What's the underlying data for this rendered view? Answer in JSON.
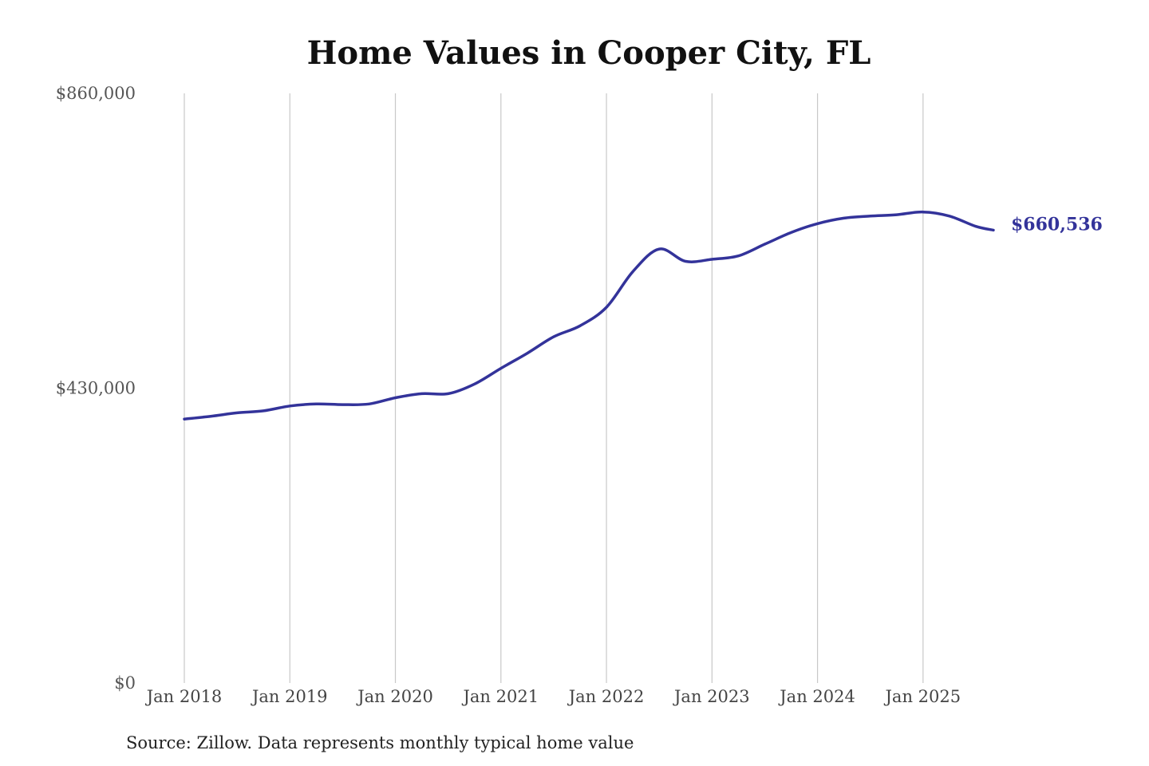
{
  "chart_data": {
    "type": "line",
    "title": "Home Values in Cooper City, FL",
    "source_note": "Source: Zillow. Data represents monthly typical home value",
    "xlabel": "",
    "ylabel": "",
    "ylim": [
      0,
      860000
    ],
    "yticks": [
      {
        "value": 0,
        "label": "$0"
      },
      {
        "value": 430000,
        "label": "$430,000"
      },
      {
        "value": 860000,
        "label": "$860,000"
      }
    ],
    "xlim": [
      "2018-01",
      "2025-09"
    ],
    "xticks": [
      {
        "date": "2018-01",
        "label": "Jan 2018"
      },
      {
        "date": "2019-01",
        "label": "Jan 2019"
      },
      {
        "date": "2020-01",
        "label": "Jan 2020"
      },
      {
        "date": "2021-01",
        "label": "Jan 2021"
      },
      {
        "date": "2022-01",
        "label": "Jan 2022"
      },
      {
        "date": "2023-01",
        "label": "Jan 2023"
      },
      {
        "date": "2024-01",
        "label": "Jan 2024"
      },
      {
        "date": "2025-01",
        "label": "Jan 2025"
      }
    ],
    "grid": "vertical",
    "colors": {
      "line": "#33339a",
      "end_label": "#33339a"
    },
    "series": [
      {
        "end_label": "$660,536",
        "points": [
          {
            "x": "2018-01",
            "y": 385000
          },
          {
            "x": "2018-04",
            "y": 389000
          },
          {
            "x": "2018-07",
            "y": 394000
          },
          {
            "x": "2018-10",
            "y": 397000
          },
          {
            "x": "2019-01",
            "y": 404000
          },
          {
            "x": "2019-04",
            "y": 407000
          },
          {
            "x": "2019-07",
            "y": 406000
          },
          {
            "x": "2019-10",
            "y": 407000
          },
          {
            "x": "2020-01",
            "y": 416000
          },
          {
            "x": "2020-04",
            "y": 422000
          },
          {
            "x": "2020-07",
            "y": 422000
          },
          {
            "x": "2020-10",
            "y": 436000
          },
          {
            "x": "2021-01",
            "y": 459000
          },
          {
            "x": "2021-04",
            "y": 481000
          },
          {
            "x": "2021-07",
            "y": 505000
          },
          {
            "x": "2021-10",
            "y": 521000
          },
          {
            "x": "2022-01",
            "y": 548000
          },
          {
            "x": "2022-04",
            "y": 600000
          },
          {
            "x": "2022-07",
            "y": 633000
          },
          {
            "x": "2022-10",
            "y": 615000
          },
          {
            "x": "2023-01",
            "y": 618000
          },
          {
            "x": "2023-04",
            "y": 623000
          },
          {
            "x": "2023-07",
            "y": 640000
          },
          {
            "x": "2023-10",
            "y": 657000
          },
          {
            "x": "2024-01",
            "y": 670000
          },
          {
            "x": "2024-04",
            "y": 678000
          },
          {
            "x": "2024-07",
            "y": 681000
          },
          {
            "x": "2024-10",
            "y": 683000
          },
          {
            "x": "2025-01",
            "y": 687000
          },
          {
            "x": "2025-04",
            "y": 681000
          },
          {
            "x": "2025-07",
            "y": 666000
          },
          {
            "x": "2025-09",
            "y": 660536
          }
        ]
      }
    ]
  }
}
